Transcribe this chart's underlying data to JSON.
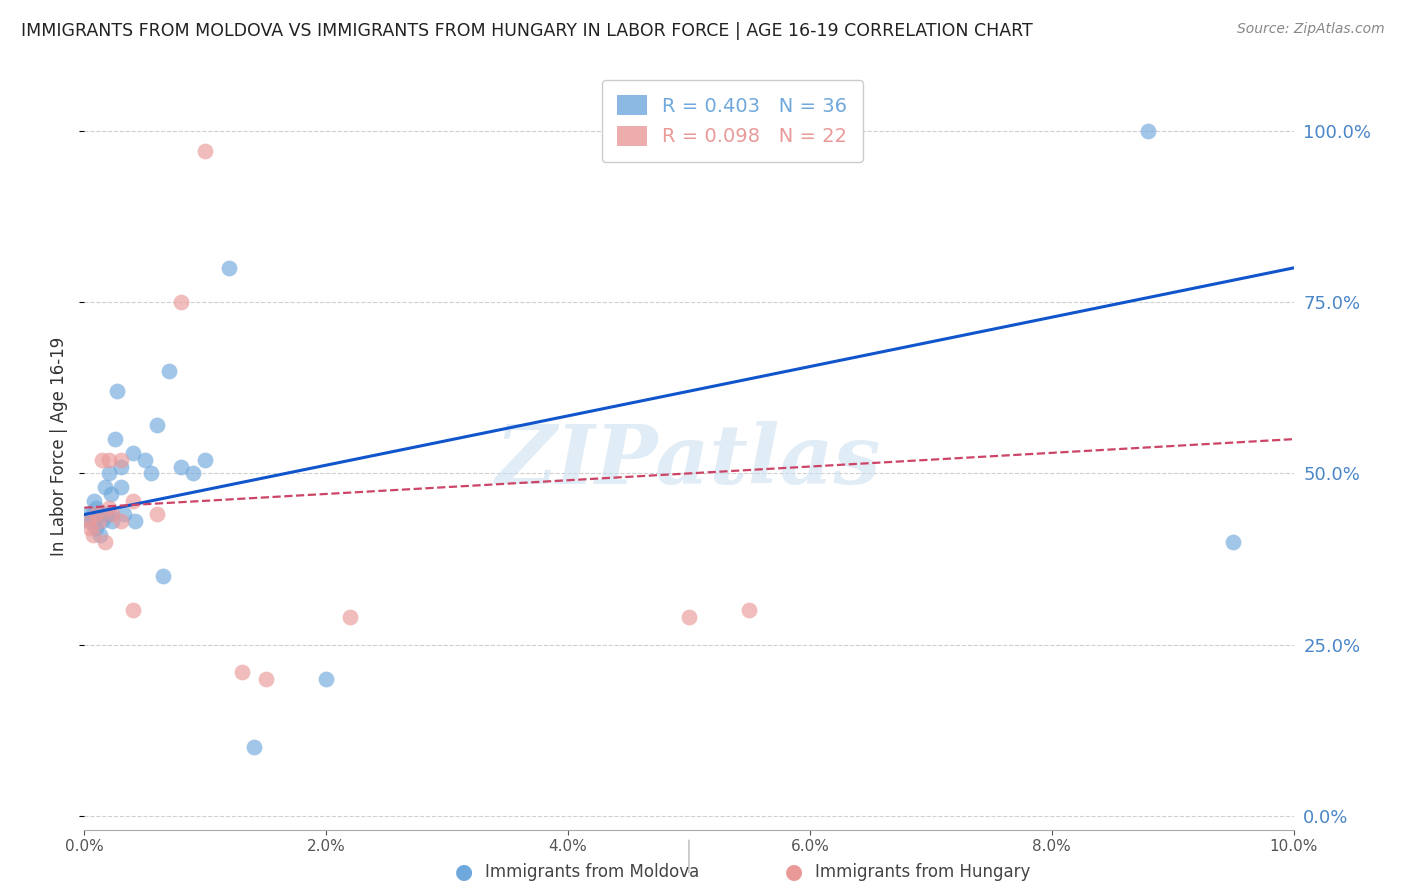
{
  "title": "IMMIGRANTS FROM MOLDOVA VS IMMIGRANTS FROM HUNGARY IN LABOR FORCE | AGE 16-19 CORRELATION CHART",
  "source": "Source: ZipAtlas.com",
  "ylabel": "In Labor Force | Age 16-19",
  "watermark": "ZIPatlas",
  "xlim": [
    0.0,
    0.1
  ],
  "ylim": [
    -0.02,
    1.1
  ],
  "yticks": [
    0.0,
    0.25,
    0.5,
    0.75,
    1.0
  ],
  "xticks": [
    0.0,
    0.02,
    0.04,
    0.06,
    0.08,
    0.1
  ],
  "moldova_color": "#6fa8dc",
  "hungary_color": "#ea9999",
  "moldova_R": 0.403,
  "moldova_N": 36,
  "hungary_R": 0.098,
  "hungary_N": 22,
  "moldova_x": [
    0.0003,
    0.0005,
    0.0007,
    0.0008,
    0.0009,
    0.001,
    0.001,
    0.0012,
    0.0013,
    0.0015,
    0.0017,
    0.0018,
    0.002,
    0.002,
    0.0022,
    0.0023,
    0.0025,
    0.0027,
    0.003,
    0.003,
    0.0033,
    0.004,
    0.0042,
    0.005,
    0.0055,
    0.006,
    0.0065,
    0.007,
    0.008,
    0.009,
    0.01,
    0.012,
    0.014,
    0.02,
    0.088,
    0.095
  ],
  "moldova_y": [
    0.44,
    0.43,
    0.44,
    0.46,
    0.43,
    0.45,
    0.42,
    0.44,
    0.41,
    0.43,
    0.48,
    0.44,
    0.5,
    0.44,
    0.47,
    0.43,
    0.55,
    0.62,
    0.51,
    0.48,
    0.44,
    0.53,
    0.43,
    0.52,
    0.5,
    0.57,
    0.35,
    0.65,
    0.51,
    0.5,
    0.52,
    0.8,
    0.1,
    0.2,
    1.0,
    0.4
  ],
  "hungary_x": [
    0.0003,
    0.0005,
    0.0007,
    0.001,
    0.0012,
    0.0015,
    0.0017,
    0.002,
    0.002,
    0.0023,
    0.003,
    0.003,
    0.004,
    0.004,
    0.006,
    0.008,
    0.01,
    0.013,
    0.015,
    0.022,
    0.05,
    0.055
  ],
  "hungary_y": [
    0.43,
    0.42,
    0.41,
    0.44,
    0.43,
    0.52,
    0.4,
    0.52,
    0.45,
    0.44,
    0.52,
    0.43,
    0.3,
    0.46,
    0.44,
    0.75,
    0.97,
    0.21,
    0.2,
    0.29,
    0.29,
    0.3
  ],
  "background_color": "#ffffff",
  "grid_color": "#d0d0d0",
  "title_color": "#222222",
  "right_tick_color": "#4a86c8",
  "moldova_line_color": "#1155cc",
  "hungary_line_color": "#cc4466"
}
